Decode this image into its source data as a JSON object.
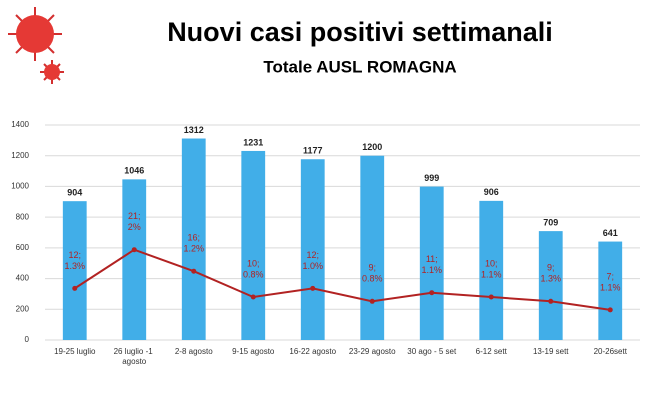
{
  "chart_data": {
    "type": "bar",
    "title": "Nuovi casi positivi settimanali",
    "subtitle": "Totale AUSL ROMAGNA",
    "categories": [
      "19-25 luglio",
      "26 luglio -1 agosto",
      "2-8 agosto",
      "9-15 agosto",
      "16-22 agosto",
      "23-29 agosto",
      "30 ago - 5 set",
      "6-12 sett",
      "13-19 sett",
      "20-26sett"
    ],
    "series": [
      {
        "type": "bar",
        "color": "#41aee8",
        "values": [
          904,
          1046,
          1312,
          1231,
          1177,
          1200,
          999,
          906,
          709,
          641
        ]
      },
      {
        "type": "line",
        "axis": "y2",
        "color": "#b22222",
        "values": [
          12,
          21,
          16,
          10,
          12,
          9,
          11,
          10,
          9,
          7
        ],
        "value_labels": [
          "12;",
          "21;",
          "16;",
          "10;",
          "12;",
          "9;",
          "11;",
          "10;",
          "9;",
          "7;"
        ],
        "percent_labels": [
          "1.3%",
          "2%",
          "1.2%",
          "0.8%",
          "1.0%",
          "0.8%",
          "1.1%",
          "1.1%",
          "1.3%",
          "1.1%"
        ]
      }
    ],
    "ylim": [
      0,
      1400
    ],
    "yticks": [
      0,
      200,
      400,
      600,
      800,
      1000,
      1200,
      1400
    ],
    "y2lim": [
      0,
      50
    ],
    "grid": true
  }
}
